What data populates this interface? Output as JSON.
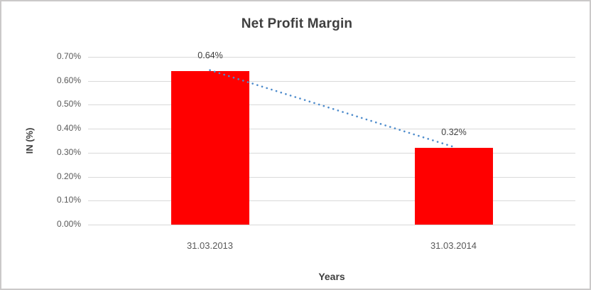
{
  "chart_data": {
    "type": "bar",
    "title": "Net Profit Margin",
    "xlabel": "Years",
    "ylabel": "IN (%)",
    "categories": [
      "31.03.2013",
      "31.03.2014"
    ],
    "series": [
      {
        "name": "Net Profit Margin",
        "values": [
          0.64,
          0.32
        ]
      }
    ],
    "data_labels": [
      "0.64%",
      "0.32%"
    ],
    "y_ticks": [
      "0.00%",
      "0.10%",
      "0.20%",
      "0.30%",
      "0.40%",
      "0.50%",
      "0.60%",
      "0.70%"
    ],
    "ylim": [
      0,
      0.7
    ],
    "grid": true,
    "legend_position": "none",
    "colors": {
      "bar": "#ff0000",
      "trendline": "#4e8ccc",
      "gridline": "#d9d9d9",
      "title_text": "#3f3f3f",
      "tick_text": "#595959",
      "data_label_text": "#404040"
    },
    "trendline": {
      "type": "linear",
      "style": "dotted",
      "from_value": 0.64,
      "to_value": 0.32
    }
  }
}
